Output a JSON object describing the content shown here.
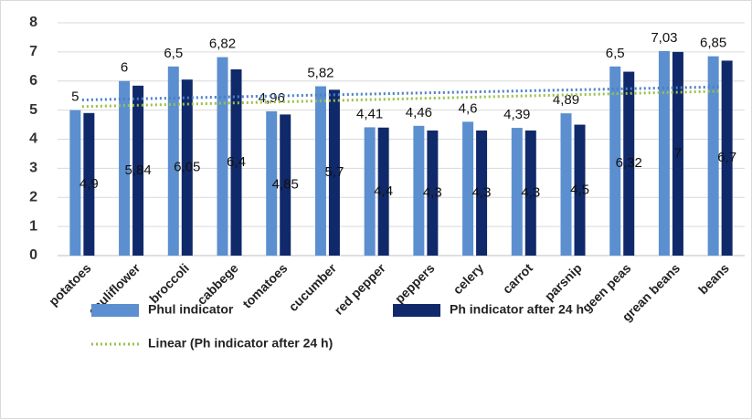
{
  "chart_data": {
    "type": "bar",
    "categories": [
      "potatoes",
      "cauliflower",
      "broccoli",
      "cabbege",
      "tomatoes",
      "cucumber",
      "red pepper",
      "peppers",
      "celery",
      "carrot",
      "parsnip",
      "geen peas",
      "grean beans",
      "beans"
    ],
    "series": [
      {
        "name": "Phul indicator",
        "color": "#5b8fcf",
        "values": [
          5,
          6,
          6.5,
          6.82,
          4.96,
          5.82,
          4.41,
          4.46,
          4.6,
          4.39,
          4.89,
          6.5,
          7.03,
          6.85
        ],
        "value_labels": [
          "5",
          "6",
          "6,5",
          "6,82",
          "4,96",
          "5,82",
          "4,41",
          "4,46",
          "4,6",
          "4,39",
          "4,89",
          "6,5",
          "7,03",
          "6,85"
        ]
      },
      {
        "name": "Ph indicator after 24 h",
        "color": "#10296a",
        "values": [
          4.9,
          5.84,
          6.05,
          6.4,
          4.85,
          5.7,
          4.4,
          4.3,
          4.3,
          4.3,
          4.5,
          6.32,
          7,
          6.7
        ],
        "value_labels": [
          "4,9",
          "5,84",
          "6,05",
          "6,4",
          "4,85",
          "5,7",
          "4,4",
          "4,3",
          "4,3",
          "4,3",
          "4,5",
          "6,32",
          "7",
          "6,7"
        ]
      }
    ],
    "trendlines": [
      {
        "color": "#4a7fc8",
        "values": [
          5.35,
          5.8
        ]
      },
      {
        "name": "Linear (Ph indicator after 24 h)",
        "color": "#9bc04a",
        "values": [
          5.12,
          5.65
        ]
      }
    ],
    "ylim": [
      0,
      8
    ],
    "yticks": [
      0,
      1,
      2,
      3,
      4,
      5,
      6,
      7,
      8
    ],
    "grid": true
  }
}
